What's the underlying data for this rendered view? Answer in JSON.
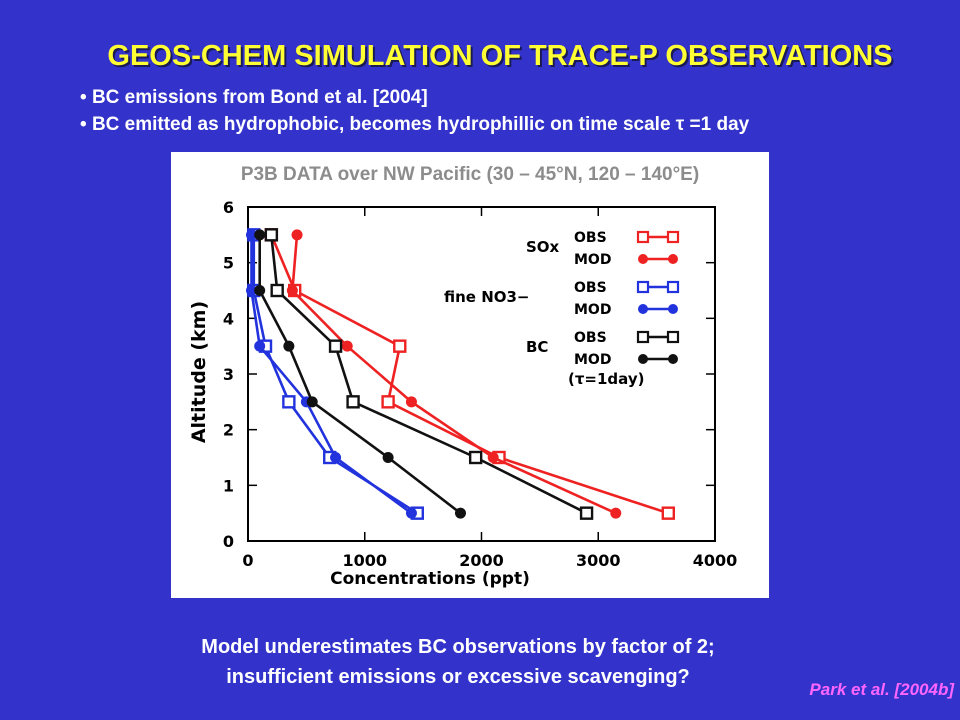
{
  "title": "GEOS-CHEM SIMULATION OF TRACE-P OBSERVATIONS",
  "bullets": [
    "BC emissions from Bond et al. [2004]",
    "BC emitted as hydrophobic, becomes hydrophillic on time scale τ =1 day"
  ],
  "panel_title": "P3B DATA over NW Pacific (30 – 45°N, 120 – 140°E)",
  "conclusion": [
    "Model underestimates BC observations by factor of 2;",
    "insufficient emissions or excessive scavenging?"
  ],
  "citation": "Park et al. [2004b]",
  "colors": {
    "background": "#3333cc",
    "title": "#ffff33",
    "sox": "#ee2222",
    "no3": "#2233dd",
    "bc": "#111111"
  },
  "chart_data": {
    "type": "line",
    "xlabel": "Concentrations (ppt)",
    "ylabel": "Altitude (km)",
    "xlim": [
      0,
      4000
    ],
    "ylim": [
      0,
      6
    ],
    "xticks": [
      0,
      1000,
      2000,
      3000,
      4000
    ],
    "yticks": [
      0,
      1,
      2,
      3,
      4,
      5,
      6
    ],
    "legend_position": "top-right",
    "legend_groups": [
      {
        "label": "SOx",
        "obs_label": "OBS",
        "mod_label": "MOD",
        "note": ""
      },
      {
        "label": "fine NO3−",
        "obs_label": "OBS",
        "mod_label": "MOD",
        "note": ""
      },
      {
        "label": "BC",
        "obs_label": "OBS",
        "mod_label": "MOD",
        "note": "(τ=1day)"
      }
    ],
    "series": [
      {
        "name": "SOx OBS",
        "color": "#ee2222",
        "marker": "square",
        "points": [
          [
            3600,
            0.5
          ],
          [
            2150,
            1.5
          ],
          [
            1200,
            2.5
          ],
          [
            1300,
            3.5
          ],
          [
            400,
            4.5
          ],
          [
            200,
            5.5
          ]
        ]
      },
      {
        "name": "SOx MOD",
        "color": "#ee2222",
        "marker": "circle",
        "points": [
          [
            3150,
            0.5
          ],
          [
            2100,
            1.5
          ],
          [
            1400,
            2.5
          ],
          [
            850,
            3.5
          ],
          [
            380,
            4.5
          ],
          [
            420,
            5.5
          ]
        ]
      },
      {
        "name": "fine NO3− OBS",
        "color": "#2233dd",
        "marker": "square",
        "points": [
          [
            1450,
            0.5
          ],
          [
            700,
            1.5
          ],
          [
            350,
            2.5
          ],
          [
            150,
            3.5
          ],
          [
            50,
            4.5
          ],
          [
            50,
            5.5
          ]
        ]
      },
      {
        "name": "fine NO3− MOD",
        "color": "#2233dd",
        "marker": "circle",
        "points": [
          [
            1400,
            0.5
          ],
          [
            750,
            1.5
          ],
          [
            500,
            2.5
          ],
          [
            100,
            3.5
          ],
          [
            30,
            4.5
          ],
          [
            30,
            5.5
          ]
        ]
      },
      {
        "name": "BC OBS",
        "color": "#111111",
        "marker": "square",
        "points": [
          [
            2900,
            0.5
          ],
          [
            1950,
            1.5
          ],
          [
            900,
            2.5
          ],
          [
            750,
            3.5
          ],
          [
            250,
            4.5
          ],
          [
            200,
            5.5
          ]
        ]
      },
      {
        "name": "BC MOD",
        "color": "#111111",
        "marker": "circle",
        "points": [
          [
            1820,
            0.5
          ],
          [
            1200,
            1.5
          ],
          [
            550,
            2.5
          ],
          [
            350,
            3.5
          ],
          [
            100,
            4.5
          ],
          [
            100,
            5.5
          ]
        ]
      }
    ]
  }
}
